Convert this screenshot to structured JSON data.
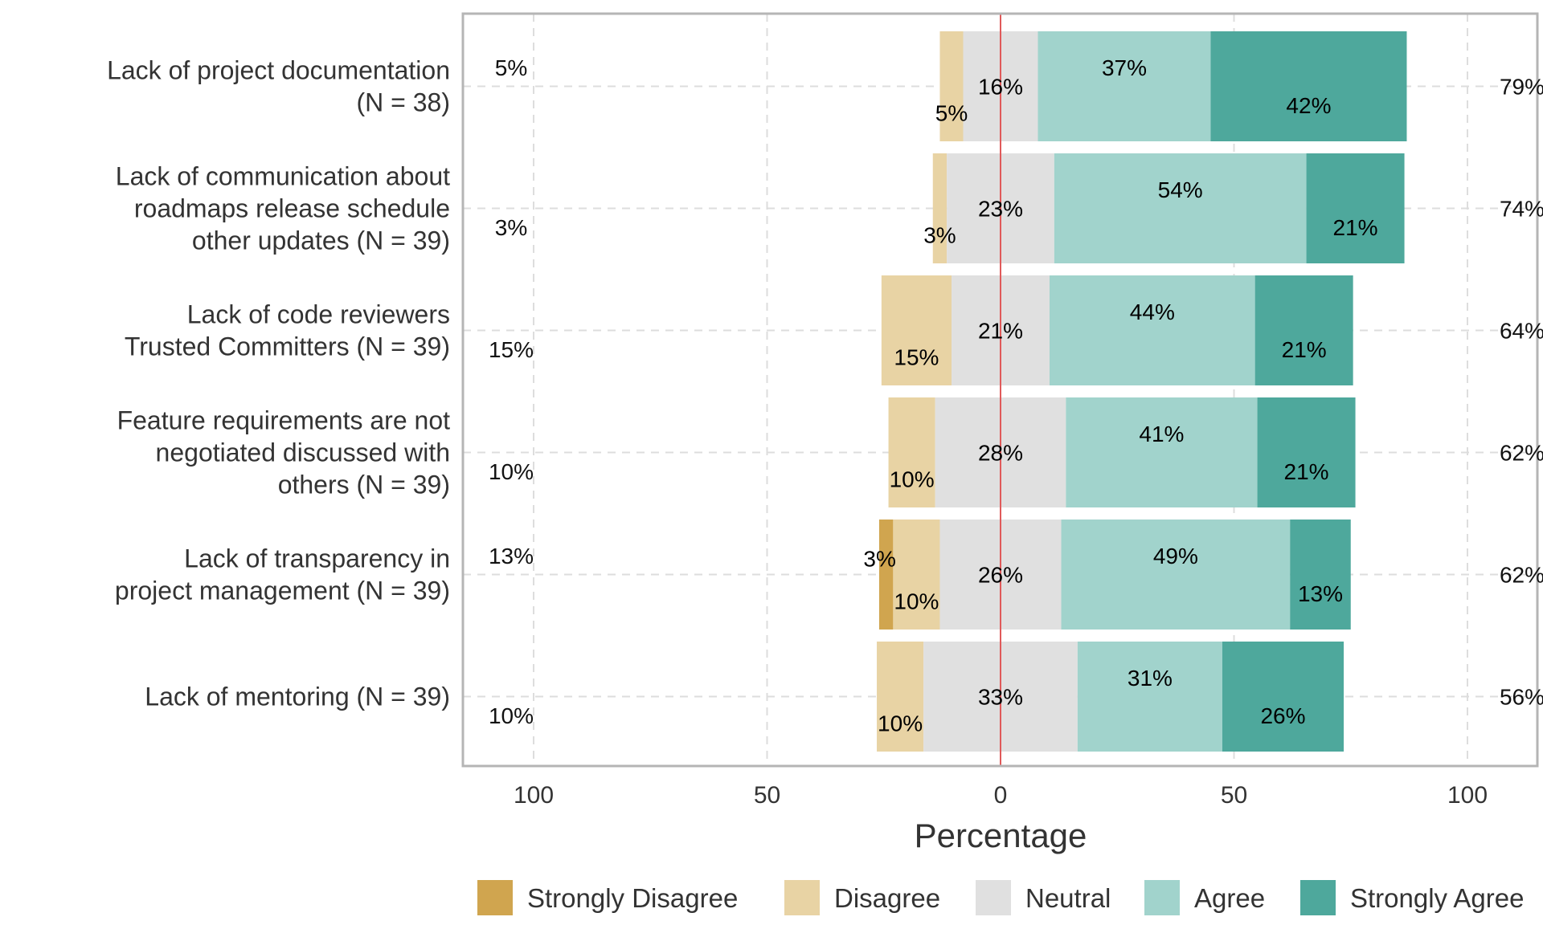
{
  "chart_data": {
    "type": "bar",
    "orientation": "horizontal-diverging",
    "xlabel": "Percentage",
    "x_ticks": [
      "100",
      "50",
      "0",
      "50",
      "100"
    ],
    "x_tick_values": [
      -100,
      -50,
      0,
      50,
      100
    ],
    "xlim": [
      -115,
      115
    ],
    "legend_position": "bottom",
    "categories": [
      "Lack of project documentation\n(N = 38)",
      "Lack of communication about\nroadmaps release schedule\nother updates (N = 39)",
      "Lack of code reviewers\nTrusted Committers (N = 39)",
      "Feature requirements are not\nnegotiated discussed with\nothers (N = 39)",
      "Lack of transparency in\nproject management (N = 39)",
      "Lack of mentoring (N = 39)"
    ],
    "series": [
      {
        "name": "Strongly Disagree",
        "color": "#d0a54f",
        "values": [
          0,
          0,
          0,
          0,
          3,
          0
        ]
      },
      {
        "name": "Disagree",
        "color": "#e8d3a4",
        "values": [
          5,
          3,
          15,
          10,
          10,
          10
        ]
      },
      {
        "name": "Neutral",
        "color": "#e0e0e0",
        "values": [
          16,
          23,
          21,
          28,
          26,
          33
        ]
      },
      {
        "name": "Agree",
        "color": "#a1d3cc",
        "values": [
          37,
          54,
          44,
          41,
          49,
          31
        ]
      },
      {
        "name": "Strongly Agree",
        "color": "#4ea89c",
        "values": [
          42,
          21,
          21,
          21,
          13,
          26
        ]
      }
    ],
    "segment_labels": [
      [
        "",
        "5%",
        "16%",
        "37%",
        "42%"
      ],
      [
        "",
        "3%",
        "23%",
        "54%",
        "21%"
      ],
      [
        "",
        "15%",
        "21%",
        "44%",
        "21%"
      ],
      [
        "",
        "10%",
        "28%",
        "41%",
        "21%"
      ],
      [
        "3%",
        "10%",
        "26%",
        "49%",
        "13%"
      ],
      [
        "",
        "10%",
        "33%",
        "31%",
        "26%"
      ]
    ],
    "left_totals": [
      "5%",
      "3%",
      "15%",
      "10%",
      "13%",
      "10%"
    ],
    "right_totals": [
      "79%",
      "74%",
      "64%",
      "62%",
      "62%",
      "56%"
    ],
    "grid": true,
    "zero_line_color": "#e05a5a"
  }
}
